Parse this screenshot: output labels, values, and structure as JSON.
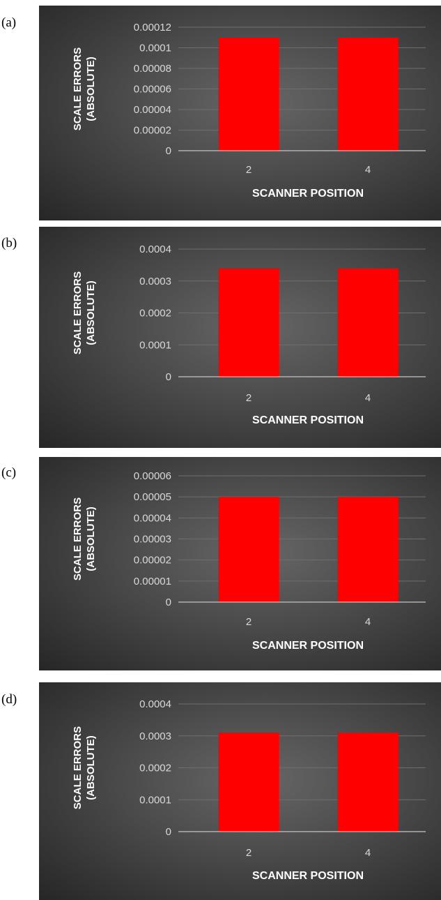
{
  "colors": {
    "bar": "#ff0000",
    "axis_text": "#d9d9d9",
    "title_text": "#ffffff",
    "gridline": "#6e6e6e",
    "baseline": "#b0b0b0"
  },
  "chart_data": [
    {
      "panel_label": "(a)",
      "type": "bar",
      "categories": [
        "2",
        "4"
      ],
      "values": [
        0.00011,
        0.00011
      ],
      "xlabel": "SCANNER POSITION",
      "ylabel": "SCALE ERRORS (ABSOLUTE)",
      "ylim": [
        0,
        0.00012
      ],
      "yticks": [
        "0",
        "0.00002",
        "0.00004",
        "0.00006",
        "0.00008",
        "0.0001",
        "0.00012"
      ],
      "grid": true
    },
    {
      "panel_label": "(b)",
      "type": "bar",
      "categories": [
        "2",
        "4"
      ],
      "values": [
        0.00034,
        0.00034
      ],
      "xlabel": "SCANNER POSITION",
      "ylabel": "SCALE ERRORS (ABSOLUTE)",
      "ylim": [
        0,
        0.0004
      ],
      "yticks": [
        "0",
        "0.0001",
        "0.0002",
        "0.0003",
        "0.0004"
      ],
      "grid": true
    },
    {
      "panel_label": "(c)",
      "type": "bar",
      "categories": [
        "2",
        "4"
      ],
      "values": [
        5e-05,
        5e-05
      ],
      "xlabel": "SCANNER POSITION",
      "ylabel": "SCALE ERRORS (ABSOLUTE)",
      "ylim": [
        0,
        6e-05
      ],
      "yticks": [
        "0",
        "0.00001",
        "0.00002",
        "0.00003",
        "0.00004",
        "0.00005",
        "0.00006"
      ],
      "grid": true
    },
    {
      "panel_label": "(d)",
      "type": "bar",
      "categories": [
        "2",
        "4"
      ],
      "values": [
        0.00031,
        0.00031
      ],
      "xlabel": "SCANNER POSITION",
      "ylabel": "SCALE ERRORS (ABSOLUTE)",
      "ylim": [
        0,
        0.0004
      ],
      "yticks": [
        "0",
        "0.0001",
        "0.0002",
        "0.0003",
        "0.0004"
      ],
      "grid": true
    }
  ]
}
